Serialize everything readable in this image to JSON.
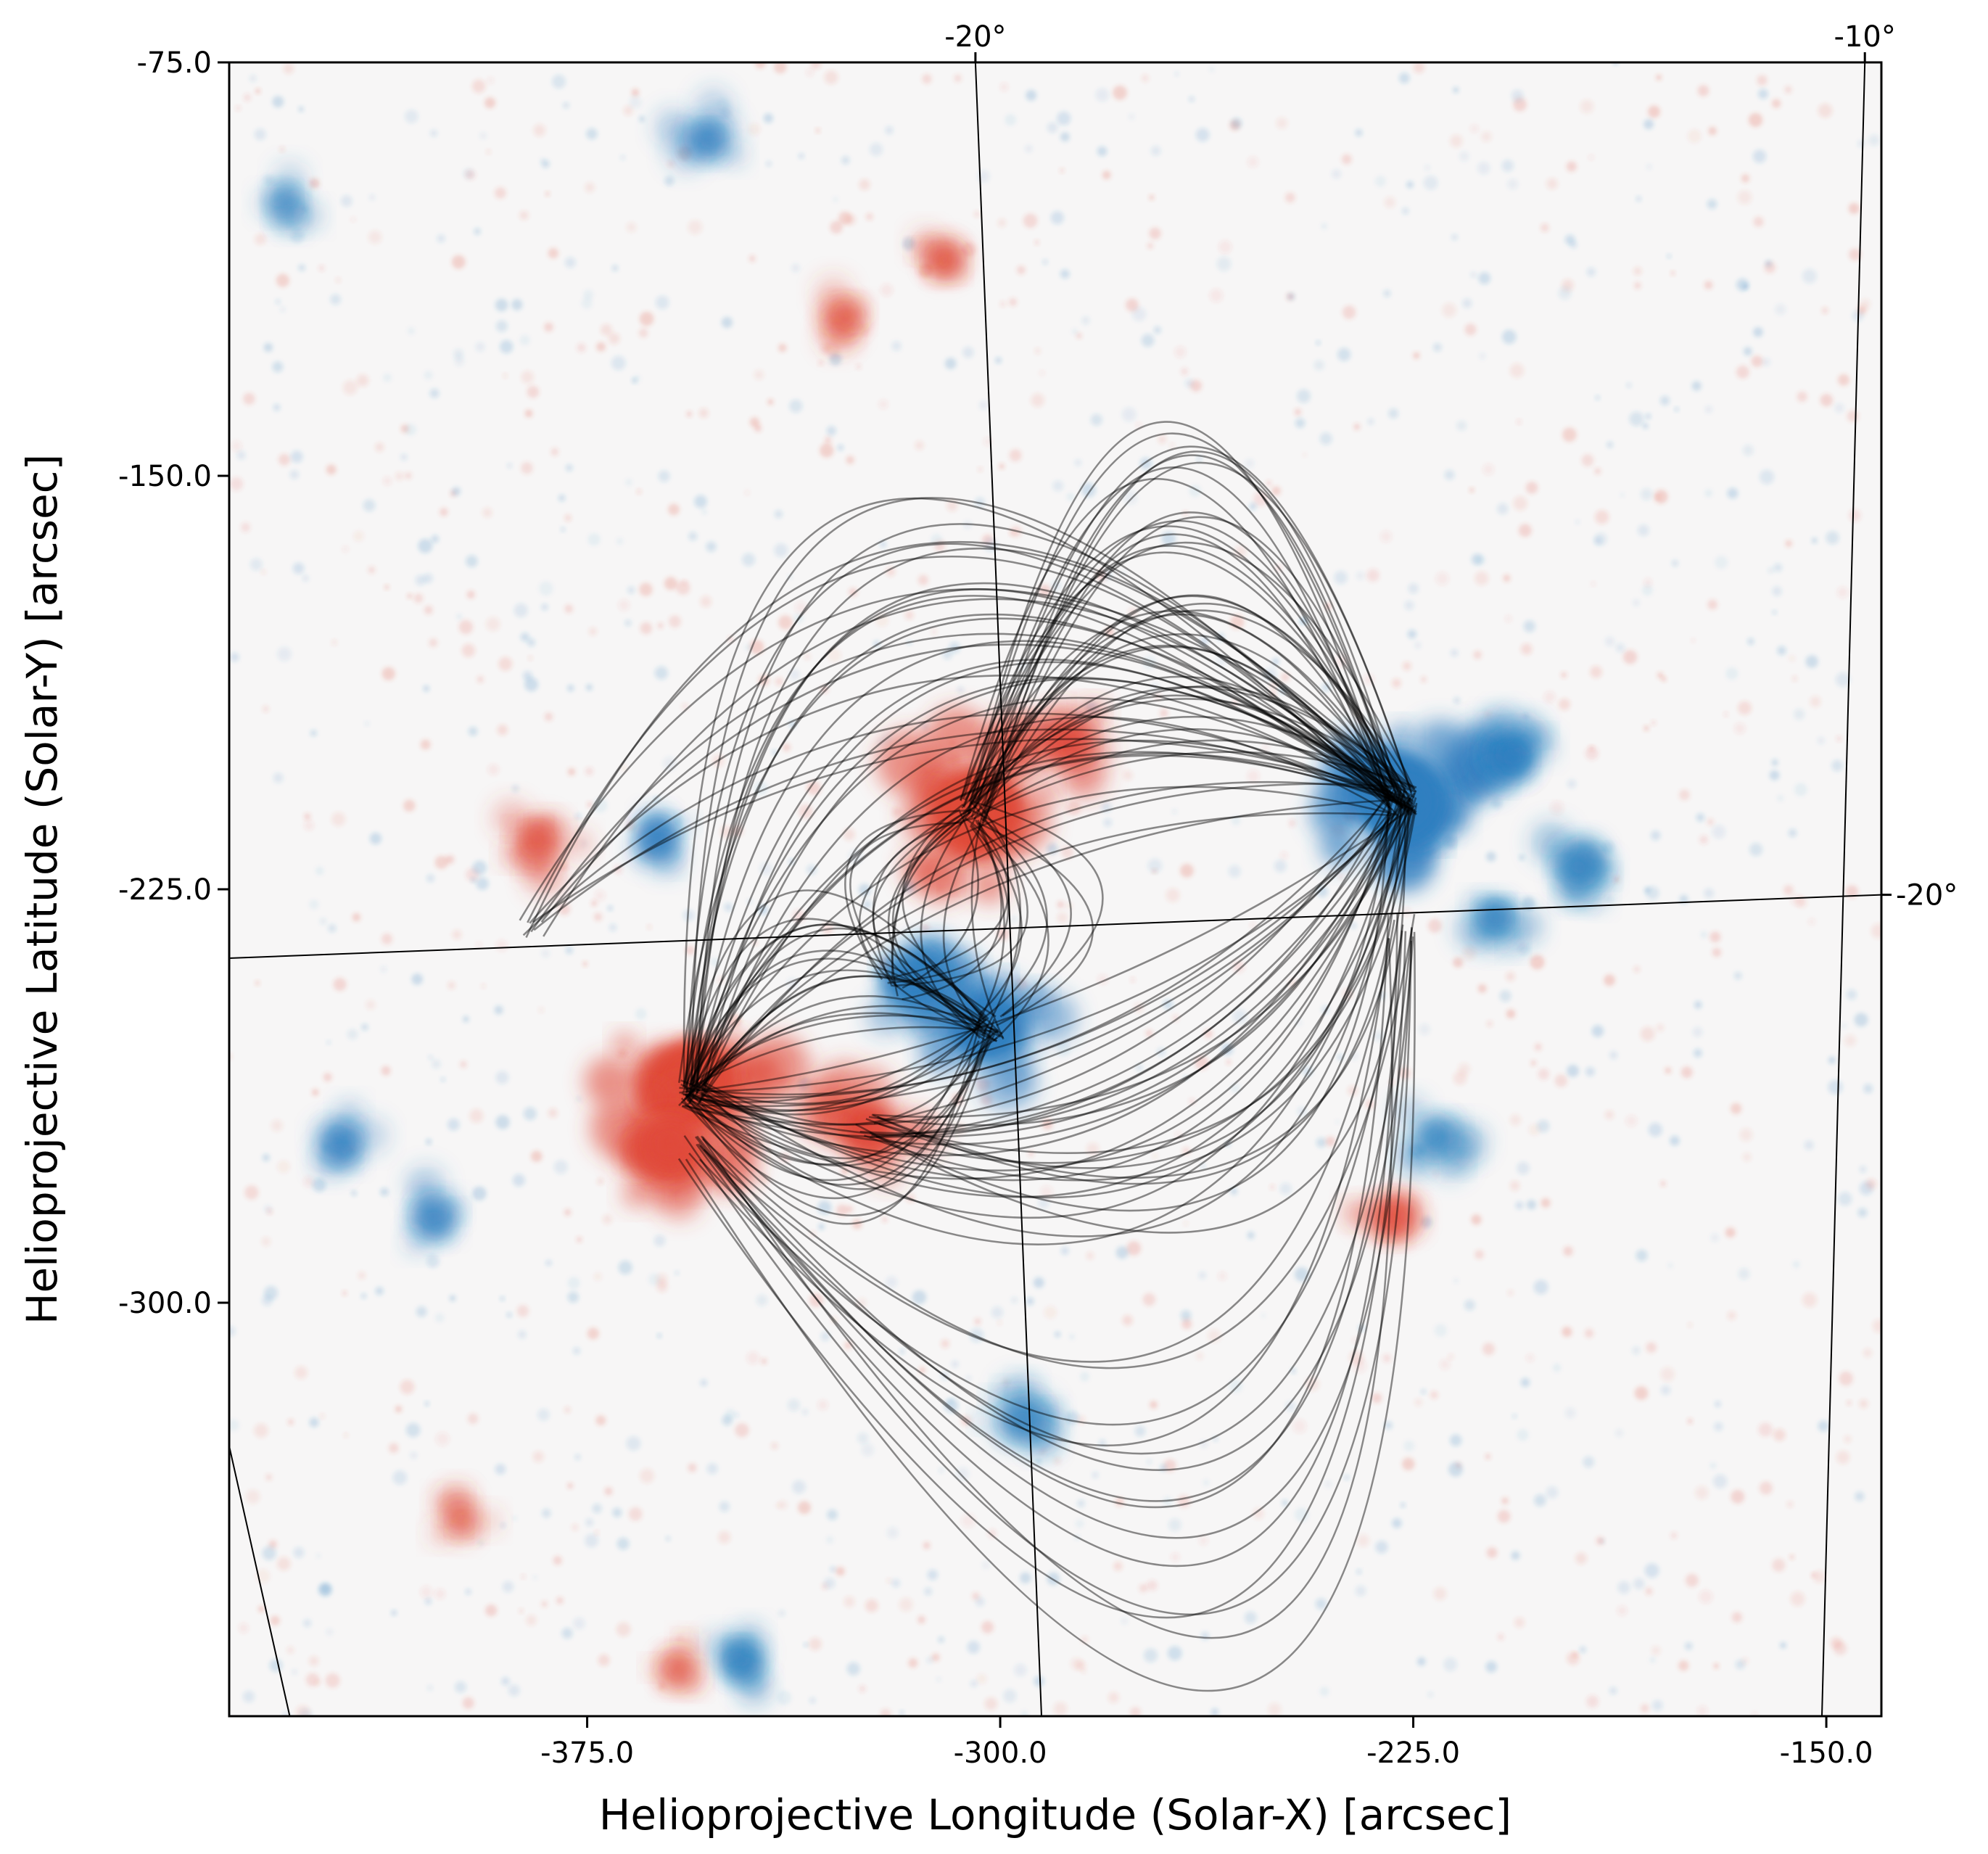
{
  "chart_data": {
    "type": "other",
    "description_type": "solar magnetogram with traced magnetic field lines",
    "xlabel": "Helioprojective Longitude (Solar-X) [arcsec]",
    "ylabel": "Helioprojective Latitude (Solar-Y) [arcsec]",
    "xlim": [
      -440.0,
      -140.0
    ],
    "ylim": [
      -375.0,
      -75.0
    ],
    "x_ticks": [
      {
        "value": -375.0,
        "label": "-375.0"
      },
      {
        "value": -300.0,
        "label": "-300.0"
      },
      {
        "value": -225.0,
        "label": "-225.0"
      },
      {
        "value": -150.0,
        "label": "-150.0"
      }
    ],
    "y_ticks": [
      {
        "value": -75.0,
        "label": "-75.0"
      },
      {
        "value": -150.0,
        "label": "-150.0"
      },
      {
        "value": -225.0,
        "label": "-225.0"
      },
      {
        "value": -300.0,
        "label": "-300.0"
      }
    ],
    "grid_lines": [
      {
        "kind": "longitude",
        "label": "-20°",
        "points": [
          [
            -304.5,
            -75.0
          ],
          [
            -292.5,
            -375.0
          ]
        ]
      },
      {
        "kind": "longitude",
        "label": "-10°",
        "points": [
          [
            -143.0,
            -75.0
          ],
          [
            -150.8,
            -375.0
          ]
        ]
      },
      {
        "kind": "longitude",
        "label": "",
        "points": [
          [
            -440.0,
            -326.0
          ],
          [
            -429.0,
            -375.0
          ]
        ]
      },
      {
        "kind": "latitude",
        "label": "-20°",
        "points": [
          [
            -440.0,
            -237.5
          ],
          [
            -140.0,
            -226.0
          ]
        ]
      }
    ],
    "polarity_colors": {
      "positive": "#e04a3a",
      "negative": "#2f7fbf",
      "field_lines": "#000000"
    },
    "flux_concentrations": [
      {
        "polarity": "negative",
        "x": -227.0,
        "y": -209.0,
        "strength": 1.0
      },
      {
        "polarity": "positive",
        "x": -305.0,
        "y": -211.0,
        "strength": 0.9
      },
      {
        "polarity": "positive",
        "x": -356.0,
        "y": -260.0,
        "strength": 0.9
      },
      {
        "polarity": "negative",
        "x": -302.0,
        "y": -250.0,
        "strength": 0.7
      },
      {
        "polarity": "positive",
        "x": -360.0,
        "y": -271.0,
        "strength": 0.6
      },
      {
        "polarity": "negative",
        "x": -316.0,
        "y": -241.0,
        "strength": 0.5
      },
      {
        "polarity": "positive",
        "x": -324.0,
        "y": -268.0,
        "strength": 0.5
      },
      {
        "polarity": "positive",
        "x": -288.0,
        "y": -198.0,
        "strength": 0.35
      },
      {
        "polarity": "positive",
        "x": -384.0,
        "y": -216.0,
        "strength": 0.3
      },
      {
        "polarity": "negative",
        "x": -207.0,
        "y": -201.0,
        "strength": 0.35
      },
      {
        "polarity": "negative",
        "x": -195.0,
        "y": -221.0,
        "strength": 0.3
      },
      {
        "polarity": "negative",
        "x": -210.0,
        "y": -230.0,
        "strength": 0.25
      },
      {
        "polarity": "negative",
        "x": -221.0,
        "y": -270.0,
        "strength": 0.25
      },
      {
        "polarity": "negative",
        "x": -296.0,
        "y": -321.0,
        "strength": 0.25
      },
      {
        "polarity": "negative",
        "x": -347.0,
        "y": -365.0,
        "strength": 0.25
      },
      {
        "polarity": "negative",
        "x": -362.0,
        "y": -216.0,
        "strength": 0.2
      },
      {
        "polarity": "negative",
        "x": -420.0,
        "y": -271.0,
        "strength": 0.2
      },
      {
        "polarity": "negative",
        "x": -403.0,
        "y": -284.0,
        "strength": 0.2
      },
      {
        "polarity": "negative",
        "x": -353.0,
        "y": -88.0,
        "strength": 0.2
      },
      {
        "polarity": "negative",
        "x": -430.0,
        "y": -100.0,
        "strength": 0.15
      },
      {
        "polarity": "positive",
        "x": -229.0,
        "y": -284.0,
        "strength": 0.2
      },
      {
        "polarity": "positive",
        "x": -398.0,
        "y": -339.0,
        "strength": 0.15
      },
      {
        "polarity": "positive",
        "x": -310.0,
        "y": -111.0,
        "strength": 0.15
      },
      {
        "polarity": "positive",
        "x": -328.0,
        "y": -121.0,
        "strength": 0.12
      },
      {
        "polarity": "positive",
        "x": -358.0,
        "y": -366.0,
        "strength": 0.12
      }
    ],
    "field_line_groups": [
      {
        "from": [
          -227.0,
          -209.0
        ],
        "to": [
          -305.0,
          -211.0
        ],
        "count": 34,
        "bulge_min": 10,
        "bulge_max": 70,
        "side": "up"
      },
      {
        "from": [
          -227.0,
          -209.0
        ],
        "to": [
          -356.0,
          -262.0
        ],
        "count": 26,
        "bulge_min": 15,
        "bulge_max": 85,
        "side": "up"
      },
      {
        "from": [
          -227.0,
          -209.0
        ],
        "to": [
          -356.0,
          -262.0
        ],
        "count": 18,
        "bulge_min": 10,
        "bulge_max": 55,
        "side": "down"
      },
      {
        "from": [
          -302.0,
          -250.0
        ],
        "to": [
          -356.0,
          -262.0
        ],
        "count": 30,
        "bulge_min": 4,
        "bulge_max": 30,
        "side": "both"
      },
      {
        "from": [
          -302.0,
          -250.0
        ],
        "to": [
          -305.0,
          -211.0
        ],
        "count": 16,
        "bulge_min": 4,
        "bulge_max": 22,
        "side": "both"
      },
      {
        "from": [
          -227.0,
          -209.0
        ],
        "to": [
          -324.0,
          -268.0
        ],
        "count": 14,
        "bulge_min": 10,
        "bulge_max": 50,
        "side": "down"
      },
      {
        "from": [
          -227.0,
          -232.0
        ],
        "to": [
          -356.0,
          -272.0
        ],
        "count": 14,
        "bulge_min": 60,
        "bulge_max": 120,
        "side": "down"
      },
      {
        "from": [
          -227.0,
          -209.0
        ],
        "to": [
          -385.0,
          -232.0
        ],
        "count": 10,
        "bulge_min": 20,
        "bulge_max": 60,
        "side": "up"
      },
      {
        "from": [
          -305.0,
          -211.0
        ],
        "to": [
          -320.0,
          -243.0
        ],
        "count": 10,
        "bulge_min": 5,
        "bulge_max": 18,
        "side": "both"
      }
    ]
  }
}
